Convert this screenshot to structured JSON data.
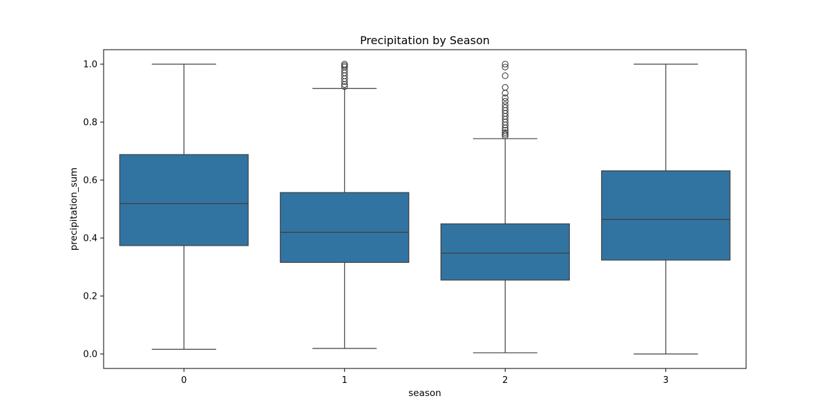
{
  "chart_data": {
    "type": "box",
    "title": "Precipitation by Season",
    "xlabel": "season",
    "ylabel": "precipitation_sum",
    "ylim": [
      -0.05,
      1.05
    ],
    "yticks": [
      "0.0",
      "0.2",
      "0.4",
      "0.6",
      "0.8",
      "1.0"
    ],
    "categories": [
      "0",
      "1",
      "2",
      "3"
    ],
    "box_color": "#3274a1",
    "line_color": "#3d3d3d",
    "grid": false,
    "boxes": [
      {
        "category": "0",
        "whisker_low": 0.016,
        "q1": 0.374,
        "median": 0.519,
        "q3": 0.688,
        "whisker_high": 1.0,
        "outliers": []
      },
      {
        "category": "1",
        "whisker_low": 0.019,
        "q1": 0.316,
        "median": 0.42,
        "q3": 0.557,
        "whisker_high": 0.916,
        "outliers": [
          0.923,
          0.93,
          0.94,
          0.95,
          0.96,
          0.97,
          0.98,
          0.99,
          0.995,
          1.0
        ]
      },
      {
        "category": "2",
        "whisker_low": 0.004,
        "q1": 0.255,
        "median": 0.348,
        "q3": 0.449,
        "whisker_high": 0.743,
        "outliers": [
          0.752,
          0.758,
          0.764,
          0.772,
          0.78,
          0.79,
          0.8,
          0.81,
          0.82,
          0.83,
          0.84,
          0.85,
          0.86,
          0.872,
          0.884,
          0.9,
          0.92,
          0.96,
          0.99,
          1.0
        ]
      },
      {
        "category": "3",
        "whisker_low": 0.0,
        "q1": 0.324,
        "median": 0.464,
        "q3": 0.632,
        "whisker_high": 1.0,
        "outliers": []
      }
    ]
  }
}
